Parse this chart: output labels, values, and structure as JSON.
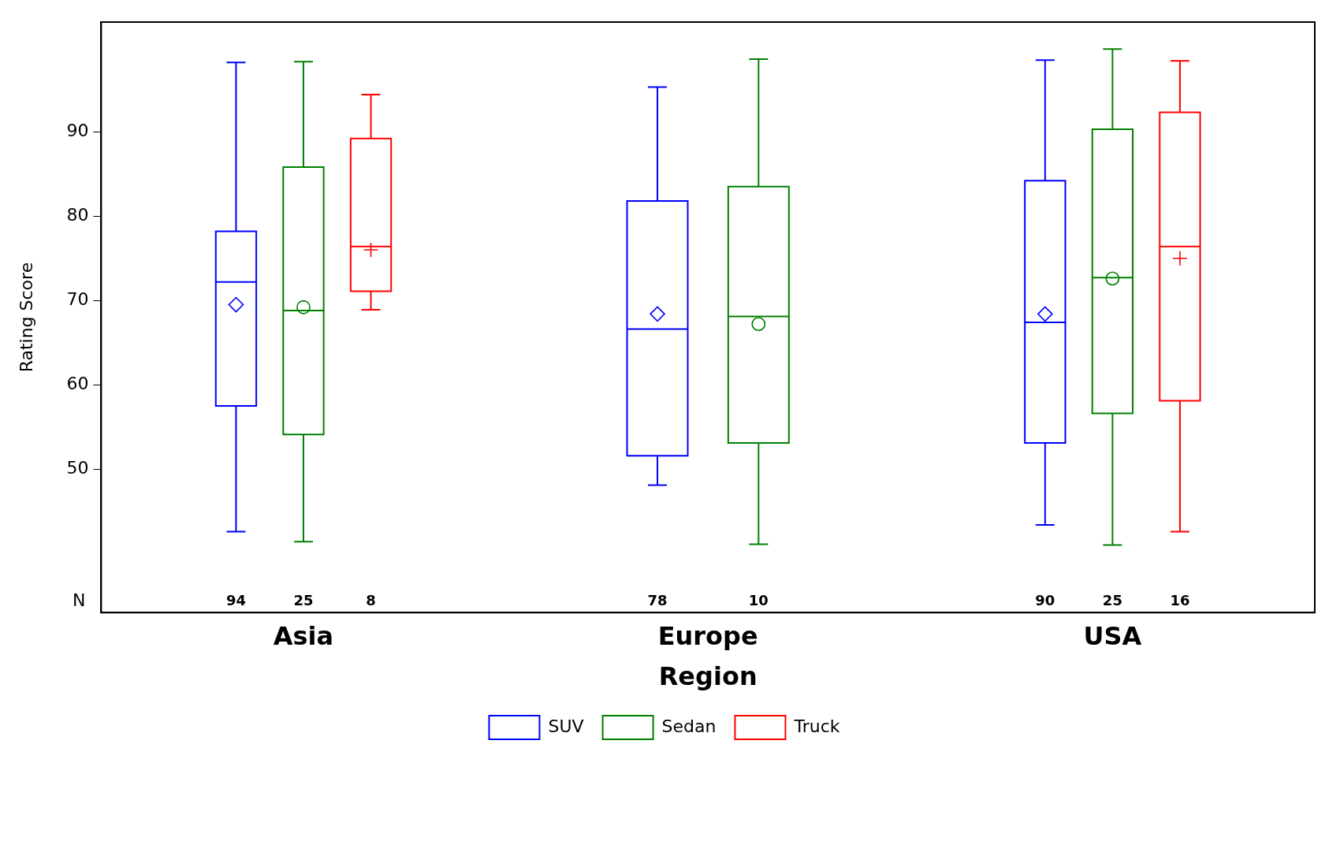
{
  "chart_data": {
    "type": "box",
    "xlabel": "Region",
    "ylabel": "Rating Score",
    "categories": [
      "Asia",
      "Europe",
      "USA"
    ],
    "ylim": [
      33,
      103
    ],
    "yticks": [
      50,
      60,
      70,
      80,
      90
    ],
    "grid": false,
    "legend": "bottom",
    "annotations": [
      "N"
    ],
    "series": [
      {
        "name": "SUV",
        "color": "#0000ff",
        "marker": "diamond",
        "value_labels": [
          "94",
          "78",
          "90"
        ],
        "boxes": [
          {
            "low": 42.6,
            "q1": 57.5,
            "median": 72.2,
            "q3": 78.2,
            "high": 98.2,
            "mean": 69.5
          },
          {
            "low": 48.1,
            "q1": 51.6,
            "median": 66.6,
            "q3": 81.8,
            "high": 95.3,
            "mean": 68.4
          },
          {
            "low": 43.4,
            "q1": 53.1,
            "median": 67.4,
            "q3": 84.2,
            "high": 98.5,
            "mean": 68.4
          }
        ]
      },
      {
        "name": "Sedan",
        "color": "#008000",
        "marker": "circle",
        "value_labels": [
          "25",
          "10",
          "25"
        ],
        "boxes": [
          {
            "low": 41.4,
            "q1": 54.1,
            "median": 68.8,
            "q3": 85.8,
            "high": 98.3,
            "mean": 69.2
          },
          {
            "low": 41.1,
            "q1": 53.1,
            "median": 68.1,
            "q3": 83.5,
            "high": 98.6,
            "mean": 67.2
          },
          {
            "low": 41.0,
            "q1": 56.6,
            "median": 72.7,
            "q3": 90.3,
            "high": 99.8,
            "mean": 72.6
          }
        ]
      },
      {
        "name": "Truck",
        "color": "#ff0000",
        "marker": "cross",
        "value_labels": [
          "8",
          null,
          "16"
        ],
        "boxes": [
          {
            "low": 68.9,
            "q1": 71.1,
            "median": 76.4,
            "q3": 89.2,
            "high": 94.4,
            "mean": 76.0
          },
          null,
          {
            "low": 42.6,
            "q1": 58.1,
            "median": 76.4,
            "q3": 92.3,
            "high": 98.4,
            "mean": 75.0
          }
        ]
      }
    ]
  }
}
